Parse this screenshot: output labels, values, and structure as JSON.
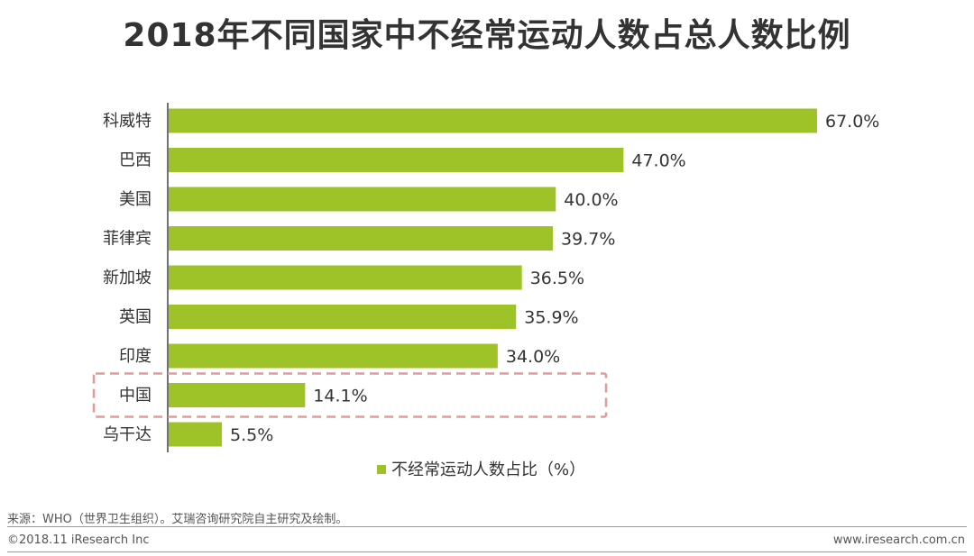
{
  "header": {
    "title": "2018年不同国家中不经常运动人数占总人数比例"
  },
  "chart_data": {
    "type": "bar",
    "orientation": "horizontal",
    "title": "2018年不同国家中不经常运动人数占总人数比例",
    "categories": [
      "科威特",
      "巴西",
      "美国",
      "菲律宾",
      "新加坡",
      "英国",
      "印度",
      "中国",
      "乌干达"
    ],
    "series": [
      {
        "name": "不经常运动人数占比（%）",
        "values": [
          67.0,
          47.0,
          40.0,
          39.7,
          36.5,
          35.9,
          34.0,
          14.1,
          5.5
        ],
        "labels": [
          "67.0%",
          "47.0%",
          "40.0%",
          "39.7%",
          "36.5%",
          "35.9%",
          "34.0%",
          "14.1%",
          "5.5%"
        ]
      }
    ],
    "xlim": [
      0,
      70
    ],
    "grid": false,
    "legend": "bottom-center",
    "highlight": "中国",
    "colors": {
      "bar": "#9dc329",
      "highlight_box": "#e59a9a",
      "axis": "#444444"
    }
  },
  "footer": {
    "source": "来源：WHO（世界卫生组织）。艾瑞咨询研究院自主研究及绘制。",
    "copyright": "©2018.11 iResearch Inc",
    "website": "www.iresearch.com.cn"
  }
}
